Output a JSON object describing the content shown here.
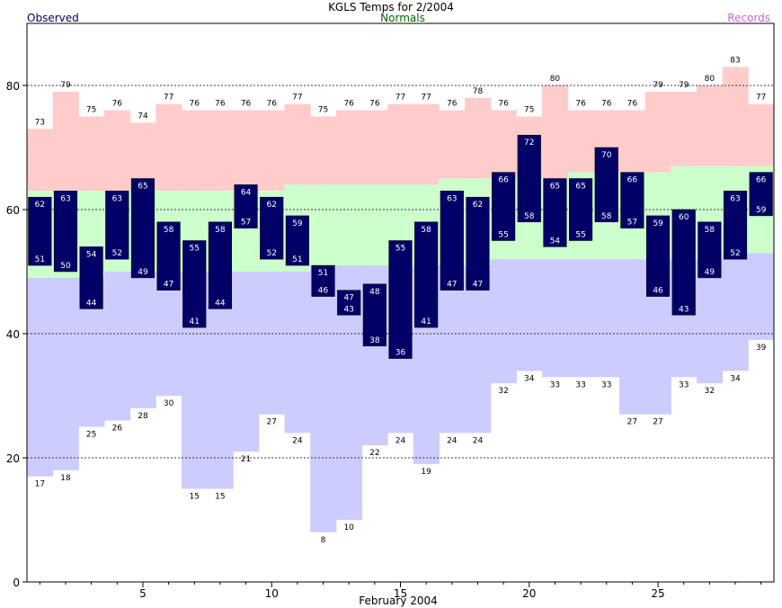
{
  "title": "KGLS Temps for 2/2004",
  "legend": {
    "observed": "Observed",
    "normals": "Normals",
    "records": "Records"
  },
  "colors": {
    "observed": "#000066",
    "normals_band": "#ccffcc",
    "record_high_band": "#ffcccc",
    "record_low_band": "#ccccff",
    "normals_text": "#006600",
    "records_text": "#cc66cc",
    "observed_text": "#000066"
  },
  "chart_data": {
    "type": "bar",
    "title": "KGLS Temps for 2/2004",
    "xlabel": "February 2004",
    "ylabel": "",
    "ylim": [
      0,
      90
    ],
    "yticks": [
      0,
      20,
      40,
      60,
      80
    ],
    "xticks": [
      5,
      10,
      15,
      20,
      25
    ],
    "grid": "dashed horizontal at 20, 40, 60, 80",
    "days": [
      1,
      2,
      3,
      4,
      5,
      6,
      7,
      8,
      9,
      10,
      11,
      12,
      13,
      14,
      15,
      16,
      17,
      18,
      19,
      20,
      21,
      22,
      23,
      24,
      25,
      26,
      27,
      28,
      29
    ],
    "observed_high": [
      62,
      63,
      54,
      63,
      65,
      58,
      55,
      58,
      64,
      62,
      59,
      51,
      47,
      48,
      55,
      58,
      63,
      62,
      66,
      72,
      65,
      65,
      70,
      66,
      59,
      60,
      58,
      63,
      66
    ],
    "observed_low": [
      51,
      50,
      44,
      52,
      49,
      47,
      41,
      44,
      57,
      52,
      51,
      46,
      43,
      38,
      36,
      41,
      47,
      47,
      55,
      58,
      54,
      55,
      58,
      57,
      46,
      43,
      49,
      52,
      59
    ],
    "normal_high": [
      63,
      63,
      63,
      63,
      63,
      63,
      63,
      63,
      63,
      63,
      64,
      64,
      64,
      64,
      64,
      64,
      65,
      65,
      65,
      65,
      65,
      66,
      66,
      66,
      66,
      67,
      67,
      67,
      67
    ],
    "normal_low": [
      49,
      49,
      49,
      50,
      50,
      50,
      50,
      50,
      50,
      50,
      50,
      51,
      51,
      51,
      51,
      51,
      51,
      51,
      52,
      52,
      52,
      52,
      52,
      52,
      52,
      52,
      52,
      53,
      53
    ],
    "record_high": [
      73,
      79,
      75,
      76,
      74,
      77,
      76,
      76,
      76,
      76,
      77,
      75,
      76,
      76,
      77,
      77,
      76,
      78,
      76,
      75,
      80,
      76,
      76,
      76,
      79,
      79,
      80,
      83,
      77
    ],
    "record_low": [
      17,
      18,
      25,
      26,
      28,
      30,
      15,
      15,
      21,
      27,
      24,
      8,
      10,
      22,
      24,
      19,
      24,
      24,
      32,
      34,
      33,
      33,
      33,
      27,
      27,
      33,
      32,
      34,
      39
    ]
  }
}
